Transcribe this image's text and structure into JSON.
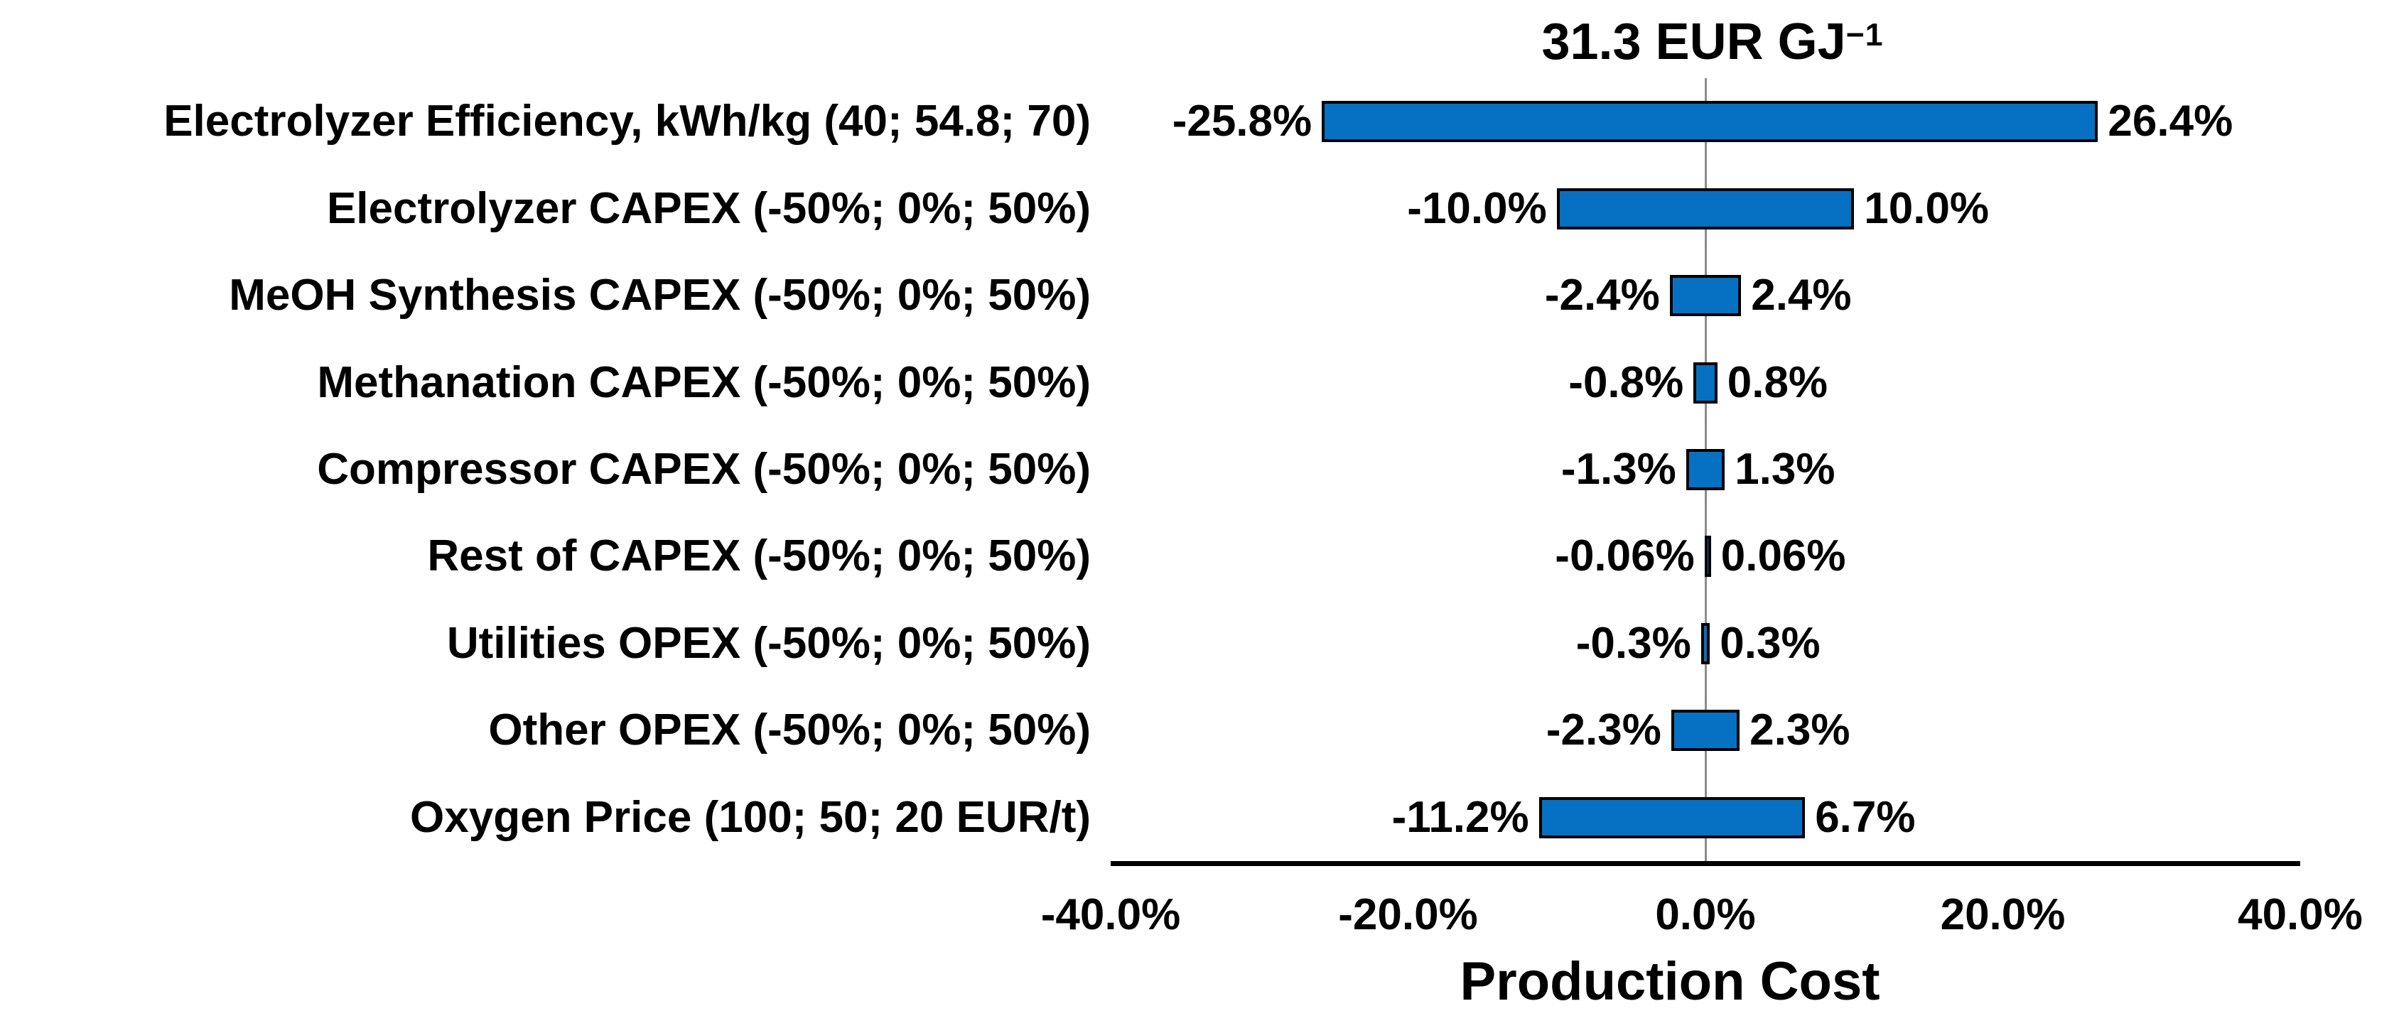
{
  "chart_data": {
    "type": "bar",
    "variant": "tornado-sensitivity",
    "title": {
      "text": "31.3 EUR GJ",
      "superscript": "−1"
    },
    "xlabel": "Production Cost",
    "xlim": [
      -40,
      40
    ],
    "x_ticks": [
      {
        "value": -40,
        "label": "-40.0%"
      },
      {
        "value": -20,
        "label": "-20.0%"
      },
      {
        "value": 0,
        "label": "0.0%"
      },
      {
        "value": 20,
        "label": "20.0%"
      },
      {
        "value": 40,
        "label": "40.0%"
      }
    ],
    "grid": "zero-line-only",
    "legend": "none",
    "colors": {
      "bar_fill": "#0671C2",
      "bar_border": "#000000",
      "zero_gridline": "#8C8C8C",
      "axis_line": "#000000",
      "text": "#000000",
      "background": "#FFFFFF"
    },
    "rows": [
      {
        "category": "Electrolyzer Efficiency, kWh/kg (40; 54.8; 70)",
        "low": -25.8,
        "high": 26.4,
        "low_label": "-25.8%",
        "high_label": "26.4%"
      },
      {
        "category": "Electrolyzer CAPEX (-50%; 0%; 50%)",
        "low": -10.0,
        "high": 10.0,
        "low_label": "-10.0%",
        "high_label": "10.0%"
      },
      {
        "category": "MeOH Synthesis CAPEX (-50%; 0%; 50%)",
        "low": -2.4,
        "high": 2.4,
        "low_label": "-2.4%",
        "high_label": "2.4%"
      },
      {
        "category": "Methanation CAPEX (-50%; 0%; 50%)",
        "low": -0.8,
        "high": 0.8,
        "low_label": "-0.8%",
        "high_label": "0.8%"
      },
      {
        "category": "Compressor CAPEX (-50%; 0%; 50%)",
        "low": -1.3,
        "high": 1.3,
        "low_label": "-1.3%",
        "high_label": "1.3%"
      },
      {
        "category": "Rest of CAPEX (-50%; 0%; 50%)",
        "low": -0.06,
        "high": 0.06,
        "low_label": "-0.06%",
        "high_label": "0.06%"
      },
      {
        "category": "Utilities OPEX (-50%; 0%; 50%)",
        "low": -0.3,
        "high": 0.3,
        "low_label": "-0.3%",
        "high_label": "0.3%"
      },
      {
        "category": "Other OPEX (-50%; 0%; 50%)",
        "low": -2.3,
        "high": 2.3,
        "low_label": "-2.3%",
        "high_label": "2.3%"
      },
      {
        "category": "Oxygen Price (100; 50; 20 EUR/t)",
        "low": -11.2,
        "high": 6.7,
        "low_label": "-11.2%",
        "high_label": "6.7%"
      }
    ]
  }
}
